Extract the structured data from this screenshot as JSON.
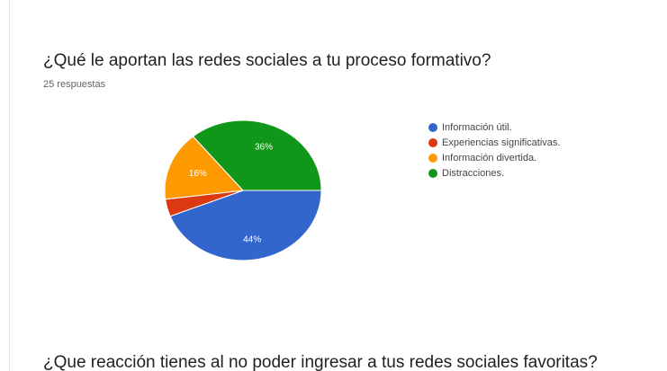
{
  "question": {
    "title": "¿Qué le aportan las redes sociales a tu proceso formativo?",
    "responses": "25 respuestas"
  },
  "next_question": {
    "title": "¿Que reacción tienes al no poder ingresar a tus redes sociales favoritas?"
  },
  "chart_data": {
    "type": "pie",
    "title": "¿Qué le aportan las redes sociales a tu proceso formativo?",
    "legend_position": "right",
    "slices": [
      {
        "label": "Información útil.",
        "value": 44,
        "display": "44%",
        "color": "#3366cc"
      },
      {
        "label": "Experiencias significativas.",
        "value": 4,
        "display": "",
        "color": "#dc3912"
      },
      {
        "label": "Información divertida.",
        "value": 16,
        "display": "16%",
        "color": "#ff9900"
      },
      {
        "label": "Distracciones.",
        "value": 36,
        "display": "36%",
        "color": "#109618"
      }
    ]
  }
}
